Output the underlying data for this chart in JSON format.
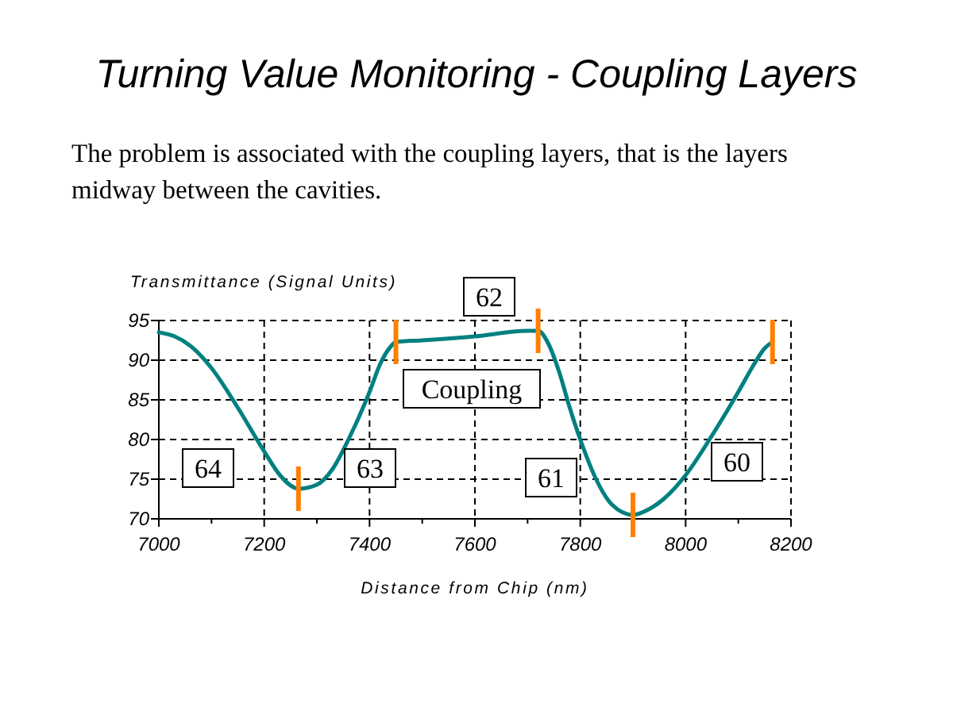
{
  "chart_data": {
    "type": "line",
    "title": "Turning Value Monitoring - Coupling Layers",
    "subtitle": "The problem is associated with the coupling layers, that is the layers midway between the cavities.",
    "xlabel": "Distance from Chip (nm)",
    "ylabel": "Transmittance (Signal Units)",
    "x": [
      7000,
      7030,
      7060,
      7100,
      7150,
      7200,
      7230,
      7265,
      7300,
      7330,
      7360,
      7400,
      7420,
      7440,
      7450,
      7500,
      7600,
      7700,
      7720,
      7740,
      7760,
      7780,
      7800,
      7830,
      7860,
      7900,
      7930,
      7960,
      8000,
      8050,
      8100,
      8130,
      8150,
      8165
    ],
    "series": [
      {
        "color": "#008080",
        "values": [
          93.5,
          93,
          91.8,
          89,
          84,
          78.5,
          75.5,
          73.8,
          74.3,
          76.3,
          80,
          86,
          89.5,
          91.7,
          92.3,
          92.5,
          93,
          93.7,
          93.7,
          92,
          88.5,
          84,
          80,
          75,
          71.8,
          70.5,
          71.2,
          72.6,
          75.5,
          80.5,
          86,
          89.5,
          91.5,
          92.3
        ]
      }
    ],
    "xlim": [
      7000,
      8200
    ],
    "xticks": [
      7000,
      7200,
      7400,
      7600,
      7800,
      8000,
      8200
    ],
    "ylim": [
      70,
      95
    ],
    "yticks": [
      70,
      75,
      80,
      85,
      90,
      95
    ],
    "grid": true,
    "marker": "none",
    "line_style": "solid",
    "ref_lines": [
      {
        "axis": "x",
        "value": 7265,
        "color": "#ff8000"
      },
      {
        "axis": "x",
        "value": 7450,
        "color": "#ff8000"
      },
      {
        "axis": "x",
        "value": 7720,
        "color": "#ff8000"
      },
      {
        "axis": "x",
        "value": 7900,
        "color": "#ff8000"
      },
      {
        "axis": "x",
        "value": 8165,
        "color": "#ff8000"
      }
    ],
    "annotations": [
      "64",
      "63",
      "62",
      "Coupling",
      "61",
      "60"
    ]
  }
}
